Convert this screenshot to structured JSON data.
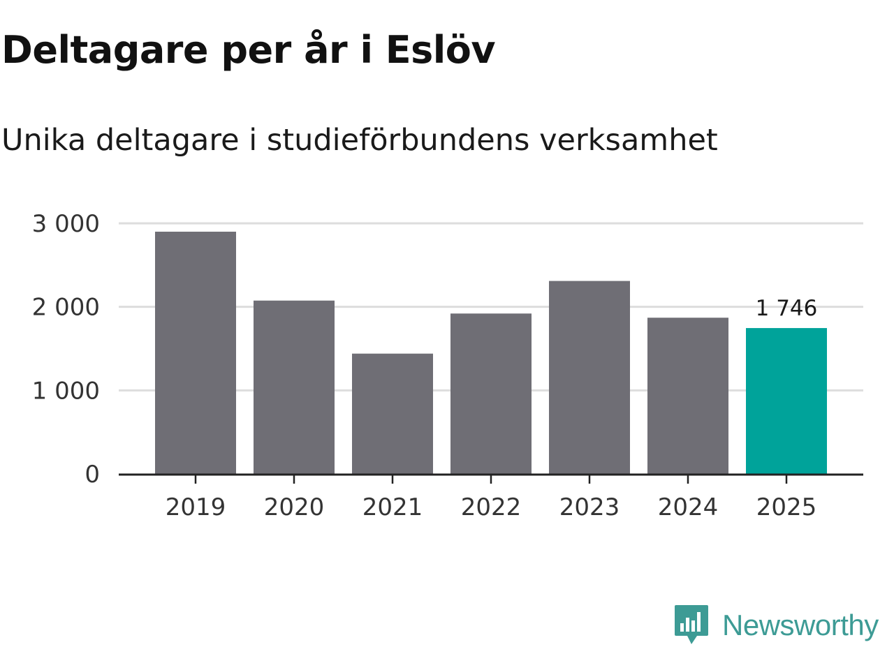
{
  "title": "Deltagare per år i Eslöv",
  "subtitle": "Unika deltagare i studieförbundens verksamhet",
  "brand": {
    "name": "Newsworthy",
    "icon": "newsworthy-logo-icon",
    "color": "#3d9b95"
  },
  "colors": {
    "bar": "#6f6e75",
    "highlight": "#00a39a",
    "grid": "#dddddd",
    "axis": "#222222"
  },
  "chart_data": {
    "type": "bar",
    "categories": [
      "2019",
      "2020",
      "2021",
      "2022",
      "2023",
      "2024",
      "2025"
    ],
    "values": [
      2900,
      2075,
      1440,
      1920,
      2310,
      1870,
      1746
    ],
    "highlight_index": 6,
    "data_labels": [
      {
        "index": 6,
        "text": "1 746"
      }
    ],
    "ylim": [
      0,
      3000
    ],
    "yticks": [
      0,
      1000,
      2000,
      3000
    ],
    "ytick_labels": [
      "0",
      "1 000",
      "2 000",
      "3 000"
    ],
    "grid": true,
    "xlabel": "",
    "ylabel": ""
  }
}
